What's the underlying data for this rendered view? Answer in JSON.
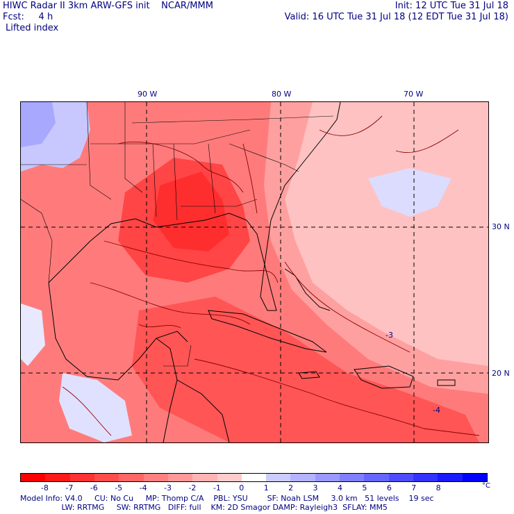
{
  "header": {
    "line1_left": "HIWC Radar II 3km ARW-GFS init    NCAR/MMM",
    "line1_right": "Init: 12 UTC Tue 31 Jul 18",
    "line2_left": "Fcst:     4 h",
    "line2_right": "Valid: 16 UTC Tue 31 Jul 18 (12 EDT Tue 31 Jul 18)",
    "line3": "Lifted index"
  },
  "map": {
    "lon_labels": [
      "90 W",
      "80 W",
      "70 W"
    ],
    "lat_labels": [
      "30 N",
      "20 N"
    ],
    "contour_labels": [
      "-3",
      "-4"
    ]
  },
  "colorbar": {
    "ticks": [
      "-8",
      "-7",
      "-6",
      "-5",
      "-4",
      "-3",
      "-2",
      "-1",
      "0",
      "1",
      "2",
      "3",
      "4",
      "5",
      "6",
      "7",
      "8"
    ],
    "unit": "°C",
    "colors": [
      "#ff0000",
      "#ff1a1a",
      "#ff3333",
      "#ff4d4d",
      "#ff6666",
      "#ff8080",
      "#ff9999",
      "#ffb3b3",
      "#ffcccc",
      "#ffffff",
      "#ccccff",
      "#b3b3ff",
      "#9999ff",
      "#7f7fff",
      "#6666ff",
      "#4d4dff",
      "#3333ff",
      "#1a1aff",
      "#0000ff"
    ]
  },
  "footer": {
    "line1": "Model Info: V4.0     CU: No Cu     MP: Thomp C/A    PBL: YSU        SF: Noah LSM     3.0 km   51 levels    19 sec",
    "line2": "                 LW: RRTMG     SW: RRTMG   DIFF: full    KM: 2D Smagor DAMP: Rayleigh3  SFLAY: MM5"
  },
  "colors": {
    "text": "#000080",
    "strong_unstable": "#ff3b3b",
    "moderate_unstable": "#ff7b7b",
    "weak_unstable": "#ffc2c2",
    "stable": "#c8c8ff",
    "contour": "#8b0000"
  }
}
